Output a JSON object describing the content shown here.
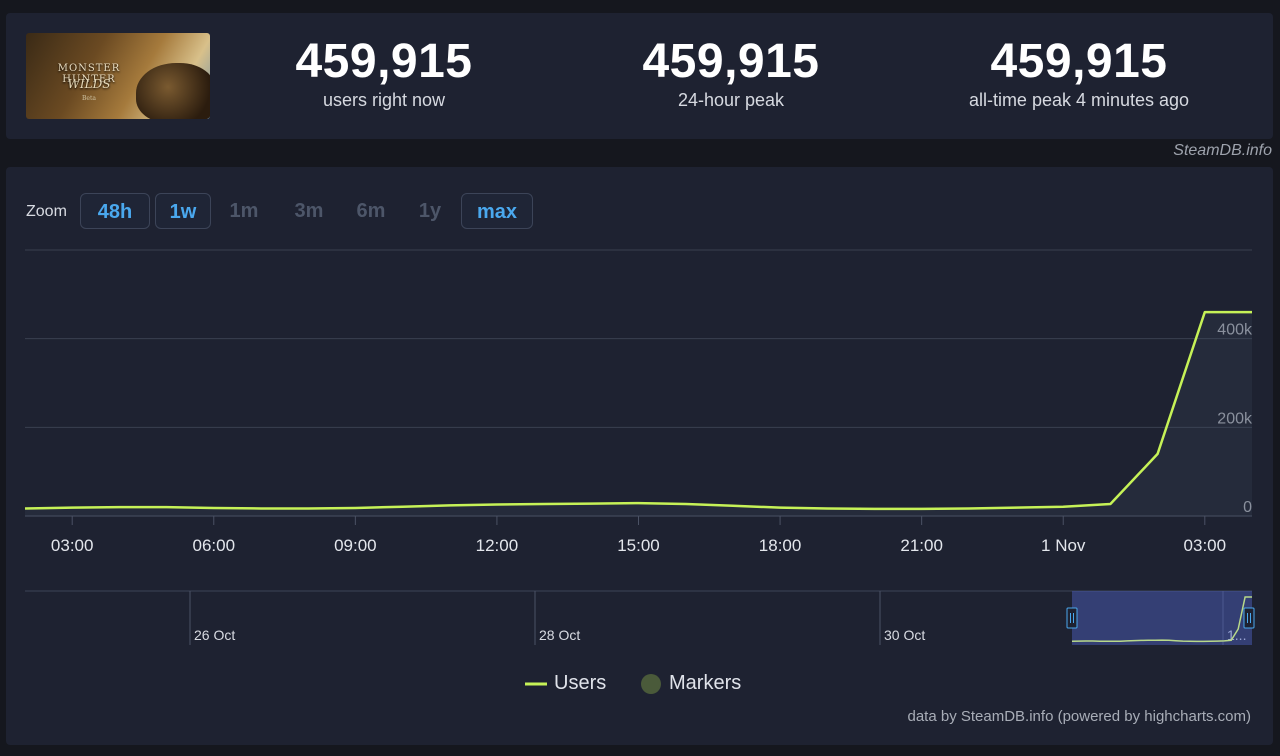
{
  "header": {
    "game_cover": {
      "logo_text": "MONSTER HUNTER",
      "subtitle": "WILDS",
      "tag": "Beta"
    },
    "stats": [
      {
        "value": "459,915",
        "label": "users right now"
      },
      {
        "value": "459,915",
        "label": "24-hour peak"
      },
      {
        "value": "459,915",
        "label": "all-time peak 4 minutes ago"
      }
    ],
    "credit": "SteamDB.info"
  },
  "zoom": {
    "label": "Zoom",
    "buttons": [
      {
        "label": "48h",
        "active": true
      },
      {
        "label": "1w",
        "active": true
      },
      {
        "label": "1m",
        "active": false
      },
      {
        "label": "3m",
        "active": false
      },
      {
        "label": "6m",
        "active": false
      },
      {
        "label": "1y",
        "active": false
      },
      {
        "label": "max",
        "active": true
      }
    ]
  },
  "chart_data": {
    "type": "line",
    "series": [
      {
        "name": "Users",
        "color": "#c6f257",
        "x": [
          "02:00",
          "03:00",
          "04:00",
          "05:00",
          "06:00",
          "07:00",
          "08:00",
          "09:00",
          "10:00",
          "11:00",
          "12:00",
          "13:00",
          "14:00",
          "15:00",
          "16:00",
          "17:00",
          "18:00",
          "19:00",
          "20:00",
          "21:00",
          "22:00",
          "23:00",
          "1 Nov 00:00",
          "01:00",
          "02:00",
          "03:00",
          "04:00"
        ],
        "values": [
          17000,
          19000,
          20000,
          20000,
          18000,
          17000,
          17000,
          18000,
          21000,
          24000,
          26000,
          27000,
          28000,
          29000,
          27000,
          23000,
          19000,
          17000,
          16000,
          16000,
          17000,
          19000,
          21000,
          27000,
          140000,
          459915,
          459915
        ]
      }
    ],
    "x_ticks": [
      "03:00",
      "06:00",
      "09:00",
      "12:00",
      "15:00",
      "18:00",
      "21:00",
      "1 Nov",
      "03:00"
    ],
    "y_ticks": [
      "0",
      "200k",
      "400k"
    ],
    "ylim": [
      0,
      600000
    ],
    "grid": true,
    "legend": [
      {
        "name": "Users",
        "color": "#c6f257"
      },
      {
        "name": "Markers",
        "color": "#4a5a3a"
      }
    ],
    "navigator": {
      "labels": [
        "26 Oct",
        "28 Oct",
        "30 Oct",
        "1..."
      ]
    }
  },
  "footer": {
    "credit": "data by SteamDB.info (powered by highcharts.com)"
  }
}
